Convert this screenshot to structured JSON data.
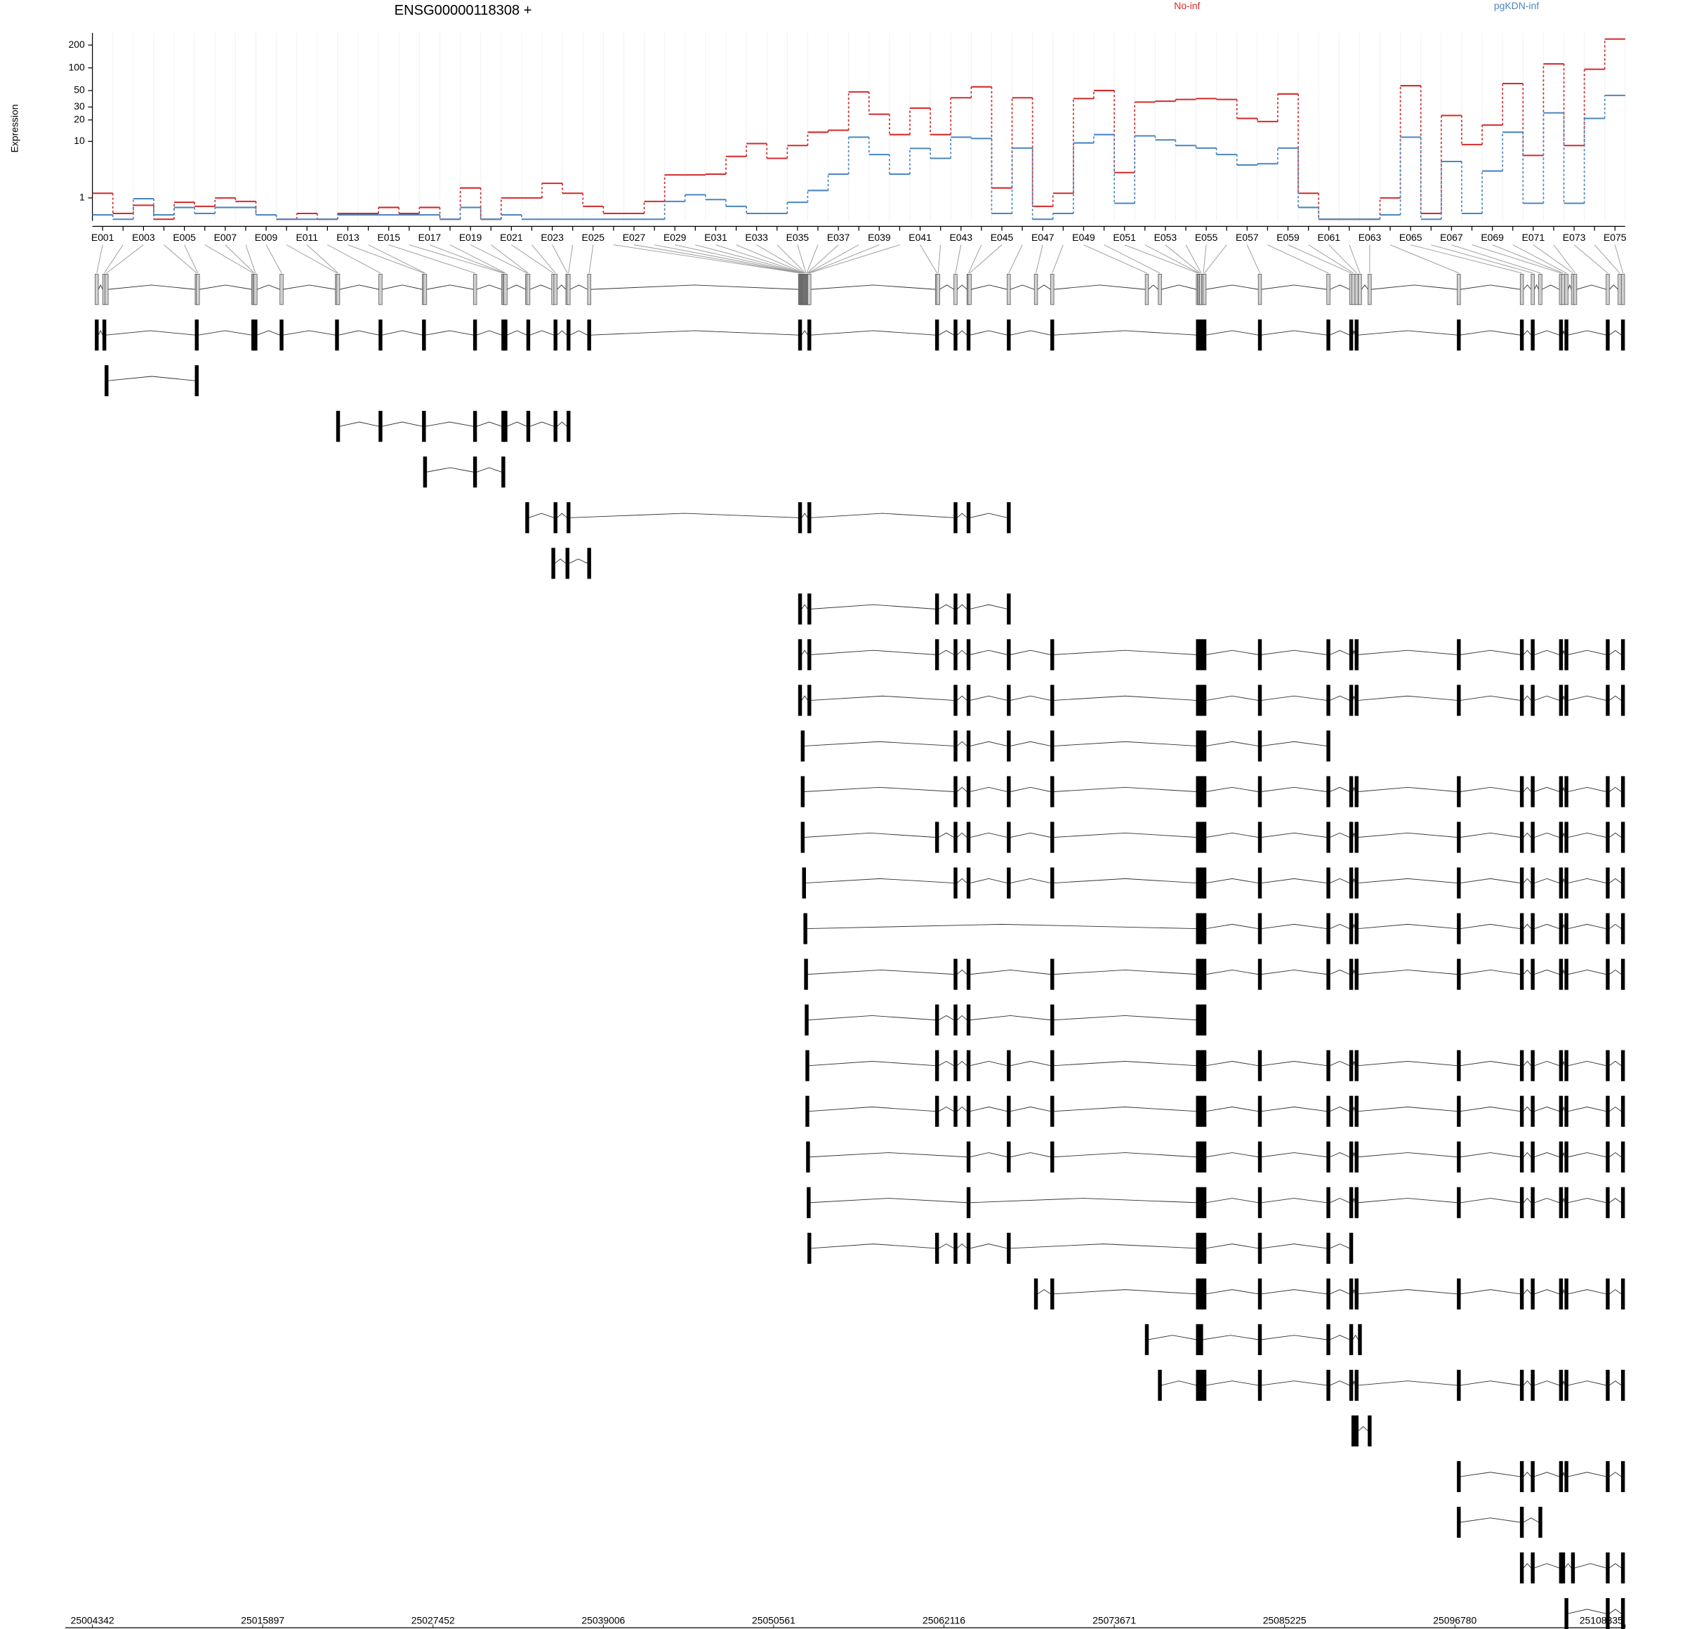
{
  "chart_data": {
    "type": "step",
    "title": "ENSG00000118308 +",
    "y_label": "Expression",
    "categories": [
      "E001",
      null,
      "E003",
      null,
      "E005",
      null,
      "E007",
      null,
      "E009",
      null,
      "E011",
      null,
      "E013",
      null,
      "E015",
      null,
      "E017",
      null,
      "E019",
      null,
      "E021",
      null,
      "E023",
      null,
      "E025",
      null,
      "E027",
      null,
      "E029",
      null,
      "E031",
      null,
      "E033",
      null,
      "E035",
      null,
      "E037",
      null,
      "E039",
      null,
      "E041",
      null,
      "E043",
      null,
      "E045",
      null,
      "E047",
      null,
      "E049",
      null,
      "E051",
      null,
      "E053",
      null,
      "E055",
      null,
      "E057",
      null,
      "E059",
      null,
      "E061",
      null,
      "E063",
      null,
      "E065",
      null,
      "E067",
      null,
      "E069",
      null,
      "E071",
      null,
      "E073",
      null,
      "E075"
    ],
    "series": [
      {
        "name": "No-inf",
        "color": "#d42a2a",
        "values": [
          1.3,
          0.25,
          0.6,
          0.05,
          0.75,
          0.55,
          1,
          0.8,
          0.2,
          0.05,
          0.25,
          0.05,
          0.25,
          0.25,
          0.5,
          0.25,
          0.5,
          0.05,
          1.7,
          0.05,
          1,
          1,
          2.1,
          1.3,
          0.55,
          0.25,
          0.25,
          0.8,
          3,
          3,
          3.1,
          6,
          9.3,
          5.6,
          8.7,
          13.5,
          14.4,
          48,
          24,
          12.5,
          29,
          12.5,
          40,
          56,
          1.7,
          40,
          0.55,
          1.3,
          39,
          50,
          3.3,
          35,
          36,
          38,
          39,
          38,
          21,
          19,
          45,
          1.3,
          0.05,
          0.05,
          0.05,
          1,
          58,
          0.25,
          23,
          9,
          17,
          62,
          6.2,
          113,
          8.7,
          96,
          240
        ]
      },
      {
        "name": "pgKDN-inf",
        "color": "#4a86c0",
        "values": [
          0.2,
          0.05,
          0.95,
          0.2,
          0.5,
          0.25,
          0.5,
          0.5,
          0.2,
          0.05,
          0.05,
          0.05,
          0.2,
          0.2,
          0.2,
          0.2,
          0.2,
          0.05,
          0.5,
          0.05,
          0.2,
          0.05,
          0.05,
          0.05,
          0.05,
          0.05,
          0.05,
          0.05,
          0.8,
          1.2,
          0.9,
          0.55,
          0.25,
          0.25,
          0.75,
          1.5,
          3.1,
          11.5,
          6.4,
          3.1,
          7.9,
          5.6,
          11.5,
          11,
          0.25,
          8,
          0.05,
          0.25,
          9.5,
          12.5,
          0.7,
          12,
          10.5,
          8.7,
          8,
          6.4,
          4.4,
          4.6,
          8,
          0.5,
          0.05,
          0.05,
          0.05,
          0.2,
          11.5,
          0.05,
          5,
          0.25,
          3.5,
          13.5,
          0.7,
          25,
          0.7,
          21,
          43
        ]
      }
    ],
    "yscale": "log1p",
    "ylim": [
      0,
      290
    ],
    "yticks": [
      1,
      10,
      20,
      30,
      50,
      100,
      200
    ],
    "grid": true,
    "gene_model": {
      "xlim": [
        25004342,
        25108335
      ],
      "xticks": [
        25004342,
        25015897,
        25027452,
        25039006,
        25050561,
        25062116,
        25073671,
        25085225,
        25096780,
        25108335
      ],
      "exons": [
        25004637,
        25005153,
        25005301,
        25011422,
        25011496,
        25015257,
        25015331,
        25015405,
        25017175,
        25020936,
        25021010,
        25023886,
        25026836,
        25026910,
        25030302,
        25032220,
        25032293,
        25032367,
        25033842,
        25033916,
        25035612,
        25035760,
        25036571,
        25036645,
        25038046,
        25052353,
        25052398,
        25052443,
        25052488,
        25052533,
        25052578,
        25052623,
        25052668,
        25052713,
        25052758,
        25052803,
        25052848,
        25052893,
        25052938,
        25052983,
        25061646,
        25061720,
        25062900,
        25063785,
        25063858,
        25066513,
        25068357,
        25069463,
        25075880,
        25076765,
        25079345,
        25079419,
        25079493,
        25079567,
        25079715,
        25079789,
        25083550,
        25088196,
        25089745,
        25089892,
        25090113,
        25090335,
        25090998,
        25097046,
        25101323,
        25102061,
        25102577,
        25103978,
        25104126,
        25104347,
        25104790,
        25104937,
        25107150,
        25107961,
        25108182
      ],
      "transcripts": [
        [
          0,
          1,
          3,
          5,
          7,
          8,
          9,
          11,
          12,
          14,
          15,
          17,
          19,
          21,
          23,
          24,
          25,
          39,
          40,
          42,
          43,
          45,
          47,
          50,
          53,
          55,
          56,
          57,
          58,
          60,
          63,
          64,
          65,
          67,
          69,
          72,
          74
        ],
        [
          2,
          3
        ],
        [
          10,
          11,
          12,
          14,
          15,
          17,
          19,
          21,
          23
        ],
        [
          13,
          14,
          15
        ],
        [
          18,
          21,
          23,
          25,
          39,
          42,
          43,
          45
        ],
        [
          20,
          22,
          24
        ],
        [
          25,
          39,
          40,
          42,
          43,
          45
        ],
        [
          25,
          39,
          40,
          42,
          43,
          45,
          47,
          50,
          53,
          55,
          56,
          57,
          58,
          60,
          63,
          64,
          65,
          67,
          69,
          72,
          74
        ],
        [
          25,
          39,
          42,
          43,
          45,
          47,
          50,
          53,
          55,
          56,
          57,
          58,
          60,
          63,
          64,
          65,
          67,
          69,
          72,
          74
        ],
        [
          29,
          42,
          43,
          45,
          47,
          50,
          53,
          55,
          56,
          57
        ],
        [
          29,
          42,
          43,
          45,
          47,
          50,
          53,
          55,
          56,
          57,
          58,
          60,
          63,
          64,
          65,
          67,
          69,
          72,
          74
        ],
        [
          29,
          40,
          42,
          43,
          45,
          47,
          50,
          53,
          55,
          56,
          57,
          58,
          60,
          63,
          64,
          65,
          67,
          69,
          72,
          74
        ],
        [
          31,
          42,
          43,
          45,
          47,
          50,
          53,
          55,
          56,
          57,
          58,
          60,
          63,
          64,
          65,
          67,
          69,
          72,
          74
        ],
        [
          33,
          50,
          53,
          55,
          56,
          57,
          58,
          60,
          63,
          64,
          65,
          67,
          69,
          72,
          74
        ],
        [
          34,
          42,
          43,
          47,
          50,
          53,
          55,
          56,
          57,
          58,
          60,
          63,
          64,
          65,
          67,
          69,
          72,
          74
        ],
        [
          35,
          40,
          42,
          43,
          47,
          50,
          53,
          55
        ],
        [
          36,
          40,
          42,
          43,
          45,
          47,
          50,
          53,
          55,
          56,
          57,
          58,
          60,
          63,
          64,
          65,
          67,
          69,
          72,
          74
        ],
        [
          36,
          40,
          42,
          43,
          45,
          47,
          50,
          53,
          55,
          56,
          57,
          58,
          60,
          63,
          64,
          65,
          67,
          69,
          72,
          74
        ],
        [
          37,
          43,
          45,
          47,
          50,
          53,
          55,
          56,
          57,
          58,
          60,
          63,
          64,
          65,
          67,
          69,
          72,
          74
        ],
        [
          38,
          43,
          50,
          53,
          55,
          56,
          57,
          58,
          60,
          63,
          64,
          65,
          67,
          69,
          72,
          74
        ],
        [
          39,
          40,
          42,
          43,
          45,
          50,
          53,
          55,
          56,
          57,
          58
        ],
        [
          46,
          47,
          50,
          53,
          55,
          56,
          57,
          58,
          60,
          63,
          64,
          65,
          67,
          69,
          72,
          74
        ],
        [
          48,
          50,
          53,
          56,
          57,
          58,
          61
        ],
        [
          49,
          50,
          53,
          55,
          56,
          57,
          58,
          60,
          63,
          64,
          65,
          67,
          69,
          72,
          74
        ],
        [
          59,
          60,
          62
        ],
        [
          63,
          64,
          65,
          67,
          69,
          72,
          74
        ],
        [
          63,
          64,
          66
        ],
        [
          64,
          65,
          67,
          68,
          70,
          72,
          74
        ],
        [
          69,
          72,
          74
        ]
      ]
    }
  }
}
